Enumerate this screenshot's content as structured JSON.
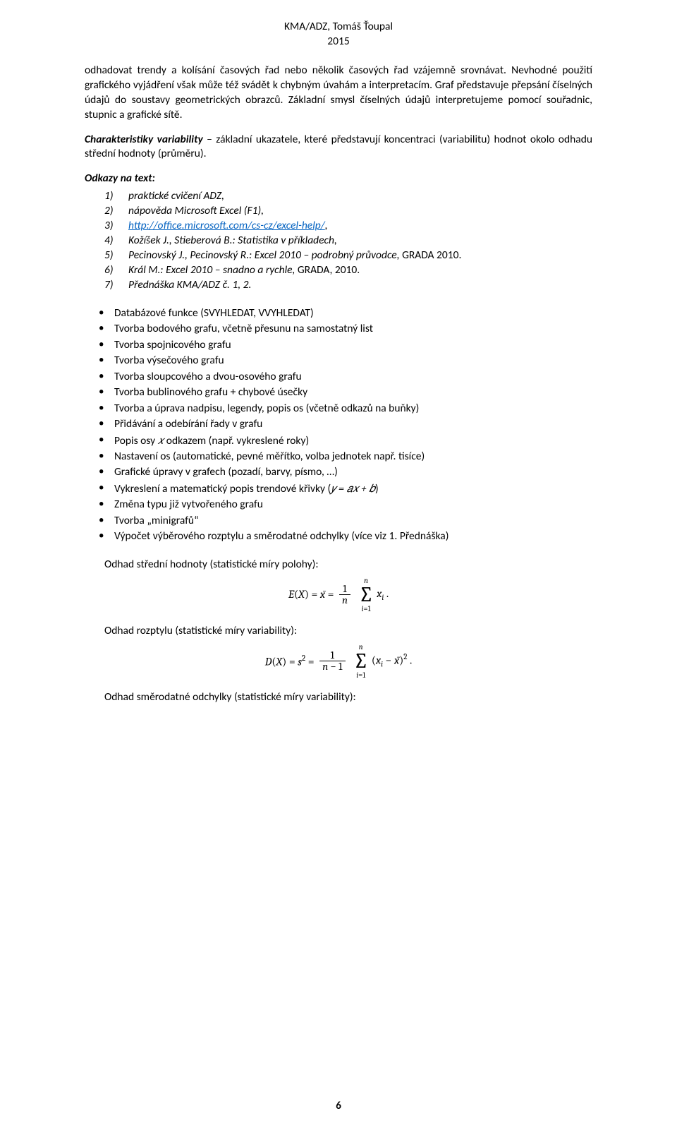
{
  "header": {
    "line1": "KMA/ADZ, Tomáš Ťoupal",
    "line2": "2015"
  },
  "intro": {
    "p1": "odhadovat trendy a kolísání časových řad nebo několik časových řad vzájemně srovnávat. Nevhodné použití grafického vyjádření však může též svádět k chybným úvahám a interpretacím. Graf představuje přepsání číselných údajů do soustavy geometrických obrazců. Základní smysl číselných údajů interpretujeme pomocí souřadnic, stupnic a grafické sítě."
  },
  "variability": {
    "lead": "Charakteristiky variability",
    "rest": " – základní ukazatele, které představují koncentraci (variabilitu) hodnot okolo odhadu střední hodnoty (průměru)."
  },
  "refs_title": "Odkazy na text:",
  "refs": [
    {
      "n": "1)",
      "text": "praktické cvičení ADZ,"
    },
    {
      "n": "2)",
      "text": "nápověda Microsoft Excel (F1),"
    },
    {
      "n": "3)",
      "link": "http://office.microsoft.com/cs-cz/excel-help/",
      "after": ","
    },
    {
      "n": "4)",
      "text": "Kožíšek J., Stieberová B.: Statistika v příkladech,"
    },
    {
      "n": "5)",
      "pre": "Pecinovský J., Pecinovský R.: Excel 2010 – podrobný průvodce, ",
      "post": "GRADA 2010."
    },
    {
      "n": "6)",
      "pre": "Král M.: Excel 2010 – snadno a rychle, ",
      "post": "GRADA, 2010."
    },
    {
      "n": "7)",
      "text": "Přednáška KMA/ADZ č. 1, 2."
    }
  ],
  "bullets": [
    "Databázové funkce (SVYHLEDAT, VVYHLEDAT)",
    "Tvorba bodového grafu, včetně přesunu na samostatný list",
    "Tvorba spojnicového grafu",
    "Tvorba výsečového grafu",
    "Tvorba sloupcového a dvou-osového grafu",
    "Tvorba bublinového grafu + chybové úsečky",
    "Tvorba a úprava nadpisu, legendy, popis os (včetně odkazů na buňky)",
    "Přidávání a odebírání řady v grafu",
    "Nastavení os (automatické, pevné měřítko, volba jednotek např. tisíce)",
    "Grafické úpravy v grafech (pozadí, barvy, písmo, …)",
    "Změna typu již vytvořeného grafu",
    "Tvorba „minigrafů“",
    "Výpočet výběrového rozptylu a směrodatné odchylky (více viz 1. Přednáška)"
  ],
  "bullet_axis": {
    "pre": "Popis osy ",
    "var": "𝑥",
    "post": " odkazem (např. vykreslené roky)"
  },
  "bullet_trend": {
    "pre": "Vykreslení a matematický popis trendové křivky (",
    "expr": "𝑦 = 𝑎𝑥 + 𝑏",
    "post": ")"
  },
  "stats": {
    "mean_label": "Odhad střední hodnoty (statistické míry polohy):",
    "var_label": "Odhad rozptylu (statistické míry variability):",
    "std_label": "Odhad směrodatné odchylky (statistické míry variability):"
  },
  "page_number": "6"
}
